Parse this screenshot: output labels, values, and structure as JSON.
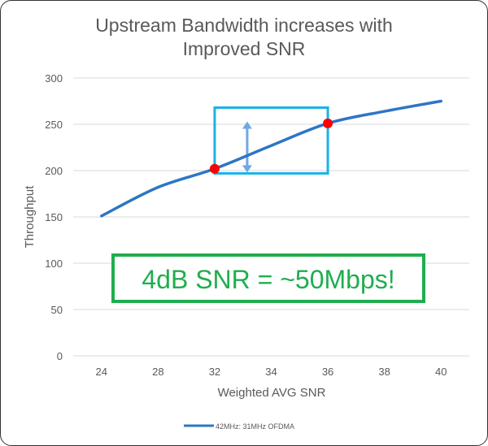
{
  "chart_data": {
    "type": "line",
    "title": [
      "Upstream Bandwidth increases with",
      "Improved SNR"
    ],
    "xlabel": "Weighted AVG SNR",
    "ylabel": "Throughput",
    "categories": [
      "24",
      "28",
      "32",
      "34",
      "36",
      "38",
      "40"
    ],
    "series": [
      {
        "name": "42MHz: 31MHz OFDMA",
        "values": [
          151,
          182,
          202,
          227,
          251,
          264,
          275
        ],
        "color": "#2e75c6"
      }
    ],
    "ylim": [
      0,
      300
    ],
    "yticks": [
      0,
      50,
      100,
      150,
      200,
      250,
      300
    ],
    "grid": true,
    "legend": "bottom",
    "highlight_points": [
      {
        "category": "32",
        "value": 202,
        "color": "#ff0000"
      },
      {
        "category": "36",
        "value": 251,
        "color": "#ff0000"
      }
    ],
    "highlight_box": {
      "from_category": "32",
      "to_category": "36",
      "y_range": [
        197,
        268
      ],
      "color": "#19b2e6"
    },
    "annotation": {
      "text": "4dB SNR = ~50Mbps!",
      "color": "#1fae4e"
    }
  }
}
